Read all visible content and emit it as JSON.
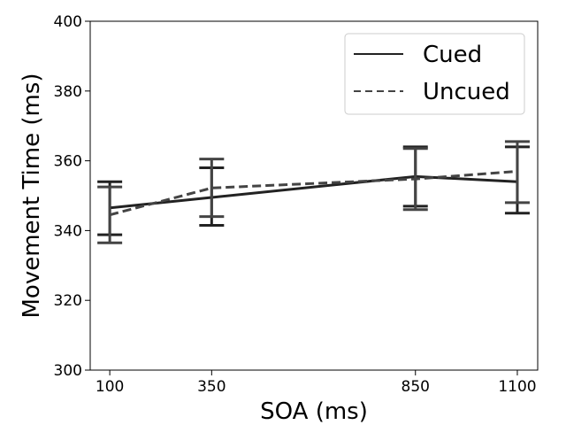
{
  "chart_data": {
    "type": "line",
    "xlabel": "SOA (ms)",
    "ylabel": "Movement Time (ms)",
    "x": [
      100,
      350,
      850,
      1100
    ],
    "xticks": [
      "100",
      "350",
      "850",
      "1100"
    ],
    "xlim": [
      52,
      1150
    ],
    "ylim": [
      300,
      400
    ],
    "yticks": [
      "300",
      "320",
      "340",
      "360",
      "380",
      "400"
    ],
    "grid": false,
    "legend_position": "upper-right",
    "series": [
      {
        "name": "Cued",
        "style": "solid",
        "color": "#222222",
        "values": [
          346.5,
          349.5,
          355.5,
          354.0
        ],
        "error_low": [
          338.8,
          341.5,
          347.0,
          345.0
        ],
        "error_high": [
          354.0,
          358.0,
          364.0,
          364.0
        ]
      },
      {
        "name": "Uncued",
        "style": "dashed",
        "color": "#444444",
        "values": [
          344.5,
          352.2,
          354.8,
          357.0
        ],
        "error_low": [
          336.5,
          344.0,
          346.0,
          348.0
        ],
        "error_high": [
          352.5,
          360.5,
          363.5,
          365.5
        ]
      }
    ]
  }
}
